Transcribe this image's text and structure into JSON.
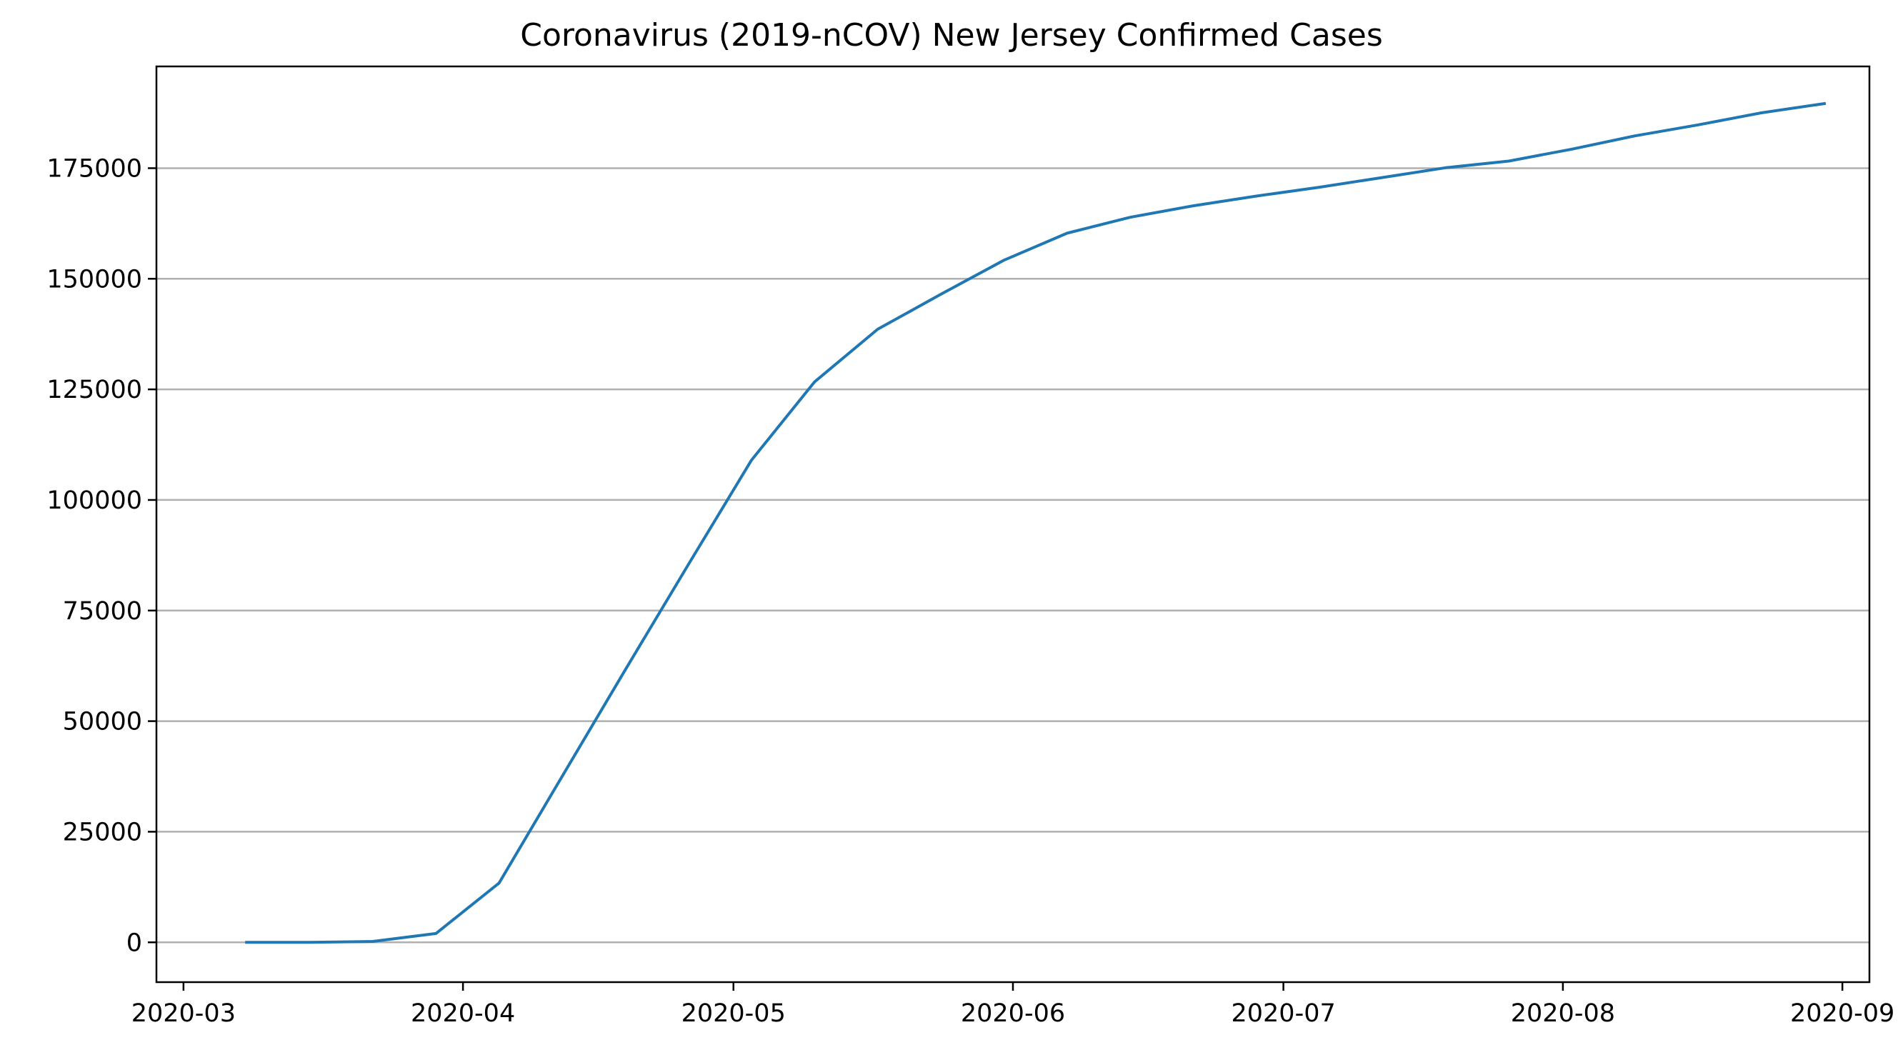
{
  "chart_data": {
    "type": "line",
    "title": "Coronavirus (2019-nCOV) New Jersey Confirmed Cases",
    "xlabel": "",
    "ylabel": "",
    "x_axis_type": "date",
    "xlim": [
      "2020-02-27",
      "2020-09-04"
    ],
    "ylim": [
      -9000,
      198000
    ],
    "grid": {
      "axis": "y",
      "on": true
    },
    "legend": false,
    "colors": {
      "series": "#1f77b4",
      "grid": "#b0b0b0",
      "axes": "#000000",
      "background": "#ffffff"
    },
    "x_ticks": [
      "2020-03",
      "2020-04",
      "2020-05",
      "2020-06",
      "2020-07",
      "2020-08",
      "2020-09"
    ],
    "y_ticks": [
      0,
      25000,
      50000,
      75000,
      100000,
      125000,
      150000,
      175000
    ],
    "series": [
      {
        "x": [
          "2020-03-08",
          "2020-03-15",
          "2020-03-22",
          "2020-03-29",
          "2020-04-05",
          "2020-04-12",
          "2020-04-19",
          "2020-04-26",
          "2020-05-03",
          "2020-05-10",
          "2020-05-17",
          "2020-05-24",
          "2020-05-31",
          "2020-06-07",
          "2020-06-14",
          "2020-06-21",
          "2020-06-28",
          "2020-07-05",
          "2020-07-12",
          "2020-07-19",
          "2020-07-26",
          "2020-08-02",
          "2020-08-09",
          "2020-08-16",
          "2020-08-23",
          "2020-08-30"
        ],
        "y": [
          0,
          0,
          200,
          2000,
          13400,
          37500,
          61600,
          85400,
          109000,
          126700,
          138600,
          146500,
          154200,
          160300,
          163900,
          166500,
          168700,
          170700,
          172900,
          175100,
          176600,
          179300,
          182300,
          184800,
          187500,
          189600
        ]
      }
    ]
  }
}
